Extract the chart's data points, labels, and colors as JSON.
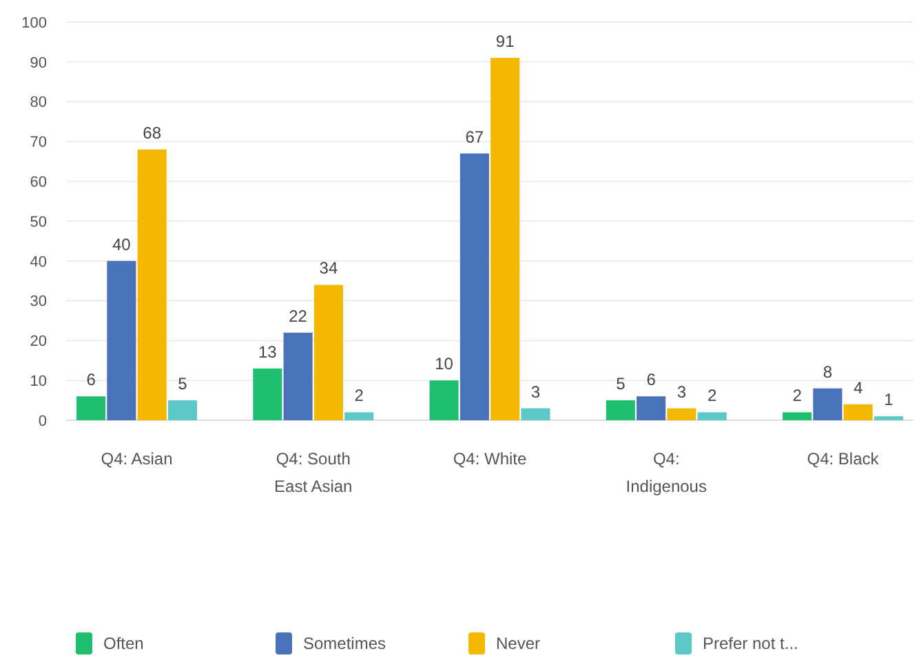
{
  "chart_data": {
    "type": "bar",
    "categories": [
      "Q4: Asian",
      "Q4: South East Asian",
      "Q4: White",
      "Q4: Indigenous",
      "Q4: Black"
    ],
    "series": [
      {
        "name": "Often",
        "color": "#1fbf6e",
        "values": [
          6,
          13,
          10,
          5,
          2
        ]
      },
      {
        "name": "Sometimes",
        "color": "#4a72b8",
        "values": [
          40,
          22,
          67,
          6,
          8
        ]
      },
      {
        "name": "Never",
        "color": "#f5b800",
        "values": [
          68,
          34,
          91,
          3,
          4
        ]
      },
      {
        "name": "Prefer not t...",
        "color": "#5cc8c8",
        "values": [
          5,
          2,
          3,
          2,
          1
        ]
      }
    ],
    "ylim": [
      0,
      100
    ],
    "yticks": [
      0,
      10,
      20,
      30,
      40,
      50,
      60,
      70,
      80,
      90,
      100
    ],
    "grid": "y",
    "legend": "bottom",
    "data_labels": true
  }
}
